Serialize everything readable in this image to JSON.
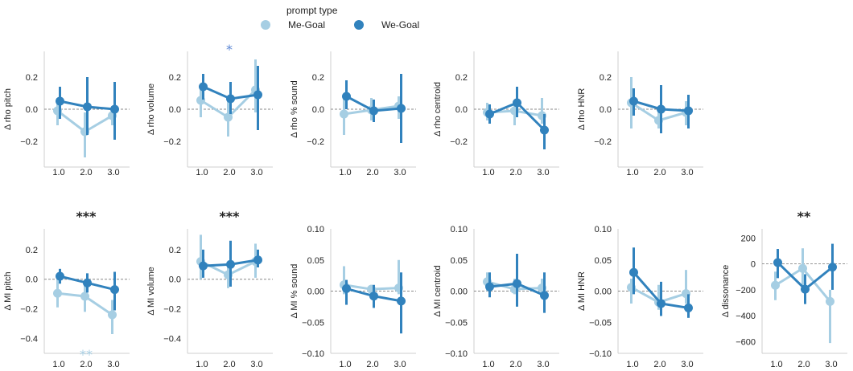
{
  "legend": {
    "title": "prompt type",
    "entries": [
      {
        "label": "Me-Goal",
        "color": "#a6cee3"
      },
      {
        "label": "We-Goal",
        "color": "#3182bd"
      }
    ]
  },
  "colors": {
    "me": "#a6cee3",
    "we": "#3182bd",
    "star_blue": "#5b87d4"
  },
  "chart_data": [
    {
      "type": "line",
      "ylabel": "Δ rho pitch",
      "categories": [
        "1.0",
        "2.0",
        "3.0"
      ],
      "yticks": [
        "0.2",
        "0.0",
        "−0.2"
      ],
      "ytick_values": [
        0.2,
        0.0,
        -0.2
      ],
      "ylim": [
        -0.36,
        0.36
      ],
      "series": [
        {
          "name": "Me-Goal",
          "values": [
            -0.01,
            -0.14,
            -0.04
          ],
          "ci_low": [
            -0.1,
            -0.3,
            -0.1
          ],
          "ci_high": [
            0.07,
            -0.02,
            0.02
          ]
        },
        {
          "name": "We-Goal",
          "values": [
            0.05,
            0.015,
            0.0
          ],
          "ci_low": [
            -0.06,
            -0.16,
            -0.19
          ],
          "ci_high": [
            0.14,
            0.2,
            0.17
          ]
        }
      ],
      "annotations": []
    },
    {
      "type": "line",
      "ylabel": "Δ rho volume",
      "categories": [
        "1.0",
        "2.0",
        "3.0"
      ],
      "yticks": [
        "0.2",
        "0.0",
        "−0.2"
      ],
      "ytick_values": [
        0.2,
        0.0,
        -0.2
      ],
      "ylim": [
        -0.36,
        0.36
      ],
      "series": [
        {
          "name": "Me-Goal",
          "values": [
            0.055,
            -0.05,
            0.12
          ],
          "ci_low": [
            -0.05,
            -0.17,
            -0.02
          ],
          "ci_high": [
            0.15,
            0.05,
            0.31
          ]
        },
        {
          "name": "We-Goal",
          "values": [
            0.14,
            0.065,
            0.09
          ],
          "ci_low": [
            0.06,
            -0.03,
            -0.13
          ],
          "ci_high": [
            0.22,
            0.17,
            0.27
          ]
        }
      ],
      "annotations": [
        {
          "text": "*",
          "x": "2.0",
          "color": "#5b87d4"
        }
      ]
    },
    {
      "type": "line",
      "ylabel": "Δ rho % sound",
      "categories": [
        "1.0",
        "2.0",
        "3.0"
      ],
      "yticks": [
        "0.2",
        "0.0",
        "−0.2"
      ],
      "ytick_values": [
        0.2,
        0.0,
        -0.2
      ],
      "ylim": [
        -0.36,
        0.36
      ],
      "series": [
        {
          "name": "Me-Goal",
          "values": [
            -0.03,
            -0.005,
            0.02
          ],
          "ci_low": [
            -0.16,
            -0.07,
            -0.06
          ],
          "ci_high": [
            0.07,
            0.07,
            0.08
          ]
        },
        {
          "name": "We-Goal",
          "values": [
            0.08,
            -0.01,
            0.005
          ],
          "ci_low": [
            0.0,
            -0.08,
            -0.21
          ],
          "ci_high": [
            0.18,
            0.06,
            0.22
          ]
        }
      ],
      "annotations": []
    },
    {
      "type": "line",
      "ylabel": "Δ rho centroid",
      "categories": [
        "1.0",
        "2.0",
        "3.0"
      ],
      "yticks": [
        "0.2",
        "0.0",
        "−0.2"
      ],
      "ytick_values": [
        0.2,
        0.0,
        -0.2
      ],
      "ylim": [
        -0.36,
        0.36
      ],
      "series": [
        {
          "name": "Me-Goal",
          "values": [
            -0.02,
            -0.01,
            -0.04
          ],
          "ci_low": [
            -0.07,
            -0.1,
            -0.09
          ],
          "ci_high": [
            0.04,
            0.05,
            0.07
          ]
        },
        {
          "name": "We-Goal",
          "values": [
            -0.03,
            0.04,
            -0.13
          ],
          "ci_low": [
            -0.09,
            -0.05,
            -0.25
          ],
          "ci_high": [
            0.03,
            0.14,
            -0.03
          ]
        }
      ],
      "annotations": []
    },
    {
      "type": "line",
      "ylabel": "Δ rho HNR",
      "categories": [
        "1.0",
        "2.0",
        "3.0"
      ],
      "yticks": [
        "0.2",
        "0.0",
        "−0.2"
      ],
      "ytick_values": [
        0.2,
        0.0,
        -0.2
      ],
      "ylim": [
        -0.36,
        0.36
      ],
      "series": [
        {
          "name": "Me-Goal",
          "values": [
            0.04,
            -0.07,
            -0.02
          ],
          "ci_low": [
            -0.12,
            -0.12,
            -0.1
          ],
          "ci_high": [
            0.2,
            0.0,
            0.05
          ]
        },
        {
          "name": "We-Goal",
          "values": [
            0.05,
            0.0,
            -0.01
          ],
          "ci_low": [
            -0.04,
            -0.15,
            -0.12
          ],
          "ci_high": [
            0.13,
            0.15,
            0.09
          ]
        }
      ],
      "annotations": []
    },
    {
      "type": "line",
      "ylabel": "Δ MI pitch",
      "categories": [
        "1.0",
        "2.0",
        "3.0"
      ],
      "yticks": [
        "0.2",
        "0.0",
        "−0.2",
        "−0.4"
      ],
      "ytick_values": [
        0.2,
        0.0,
        -0.2,
        -0.4
      ],
      "ylim": [
        -0.5,
        0.34
      ],
      "series": [
        {
          "name": "Me-Goal",
          "values": [
            -0.095,
            -0.115,
            -0.24
          ],
          "ci_low": [
            -0.19,
            -0.22,
            -0.37
          ],
          "ci_high": [
            0.0,
            -0.01,
            -0.14
          ]
        },
        {
          "name": "We-Goal",
          "values": [
            0.02,
            -0.025,
            -0.07
          ],
          "ci_low": [
            -0.03,
            -0.09,
            -0.21
          ],
          "ci_high": [
            0.07,
            0.04,
            0.05
          ]
        }
      ],
      "annotations": [
        {
          "text": "***",
          "x": "2.0",
          "color": "#222222"
        },
        {
          "text": "**",
          "x": "2.0",
          "color": "#a6cee3"
        }
      ]
    },
    {
      "type": "line",
      "ylabel": "Δ MI volume",
      "categories": [
        "1.0",
        "2.0",
        "3.0"
      ],
      "yticks": [
        "0.2",
        "0.0",
        "−0.2",
        "−0.4"
      ],
      "ytick_values": [
        0.2,
        0.0,
        -0.2,
        -0.4
      ],
      "ylim": [
        -0.5,
        0.34
      ],
      "series": [
        {
          "name": "Me-Goal",
          "values": [
            0.12,
            0.03,
            0.12
          ],
          "ci_low": [
            0.0,
            -0.06,
            0.01
          ],
          "ci_high": [
            0.3,
            0.12,
            0.24
          ]
        },
        {
          "name": "We-Goal",
          "values": [
            0.09,
            0.1,
            0.13
          ],
          "ci_low": [
            0.01,
            -0.05,
            0.08
          ],
          "ci_high": [
            0.2,
            0.26,
            0.2
          ]
        }
      ],
      "annotations": [
        {
          "text": "***",
          "x": "2.0",
          "color": "#222222"
        }
      ]
    },
    {
      "type": "line",
      "ylabel": "Δ MI % sound",
      "categories": [
        "1.0",
        "2.0",
        "3.0"
      ],
      "yticks": [
        "0.10",
        "0.05",
        "0.00",
        "−0.05",
        "−0.10"
      ],
      "ytick_values": [
        0.1,
        0.05,
        0.0,
        -0.05,
        -0.1
      ],
      "ylim": [
        -0.1,
        0.1
      ],
      "series": [
        {
          "name": "Me-Goal",
          "values": [
            0.01,
            0.003,
            0.005
          ],
          "ci_low": [
            -0.005,
            -0.005,
            -0.005
          ],
          "ci_high": [
            0.04,
            0.01,
            0.05
          ]
        },
        {
          "name": "We-Goal",
          "values": [
            0.004,
            -0.008,
            -0.016
          ],
          "ci_low": [
            -0.022,
            -0.027,
            -0.068
          ],
          "ci_high": [
            0.018,
            0.01,
            0.03
          ]
        }
      ],
      "annotations": []
    },
    {
      "type": "line",
      "ylabel": "Δ MI centroid",
      "categories": [
        "1.0",
        "2.0",
        "3.0"
      ],
      "yticks": [
        "0.10",
        "0.05",
        "0.00",
        "−0.05",
        "−0.10"
      ],
      "ytick_values": [
        0.1,
        0.05,
        0.0,
        -0.05,
        -0.1
      ],
      "ylim": [
        -0.1,
        0.1
      ],
      "series": [
        {
          "name": "Me-Goal",
          "values": [
            0.015,
            0.003,
            0.005
          ],
          "ci_low": [
            0.0,
            -0.005,
            -0.005
          ],
          "ci_high": [
            0.03,
            0.02,
            0.02
          ]
        },
        {
          "name": "We-Goal",
          "values": [
            0.007,
            0.012,
            -0.007
          ],
          "ci_low": [
            -0.01,
            -0.025,
            -0.035
          ],
          "ci_high": [
            0.03,
            0.06,
            0.03
          ]
        }
      ],
      "annotations": []
    },
    {
      "type": "line",
      "ylabel": "Δ MI HNR",
      "categories": [
        "1.0",
        "2.0",
        "3.0"
      ],
      "yticks": [
        "0.10",
        "0.05",
        "0.00",
        "−0.05",
        "−0.10"
      ],
      "ytick_values": [
        0.1,
        0.05,
        0.0,
        -0.05,
        -0.1
      ],
      "ylim": [
        -0.1,
        0.1
      ],
      "series": [
        {
          "name": "Me-Goal",
          "values": [
            0.006,
            -0.018,
            -0.004
          ],
          "ci_low": [
            -0.02,
            -0.03,
            -0.02
          ],
          "ci_high": [
            0.02,
            0.01,
            0.034
          ]
        },
        {
          "name": "We-Goal",
          "values": [
            0.03,
            -0.02,
            -0.027
          ],
          "ci_low": [
            -0.005,
            -0.04,
            -0.043
          ],
          "ci_high": [
            0.07,
            0.015,
            -0.005
          ]
        }
      ],
      "annotations": []
    },
    {
      "type": "line",
      "ylabel": "Δ dissonance",
      "categories": [
        "1.0",
        "2.0",
        "3.0"
      ],
      "yticks": [
        "200",
        "0",
        "−200",
        "−400",
        "−600"
      ],
      "ytick_values": [
        200,
        0,
        -200,
        -400,
        -600
      ],
      "ylim": [
        -690,
        270
      ],
      "series": [
        {
          "name": "Me-Goal",
          "values": [
            -165,
            -35,
            -290
          ],
          "ci_low": [
            -280,
            -200,
            -610
          ],
          "ci_high": [
            -60,
            120,
            -200
          ]
        },
        {
          "name": "We-Goal",
          "values": [
            10,
            -195,
            -25
          ],
          "ci_low": [
            -110,
            -310,
            -200
          ],
          "ci_high": [
            115,
            -80,
            155
          ]
        }
      ],
      "annotations": [
        {
          "text": "**",
          "x": "2.0",
          "color": "#222222"
        }
      ]
    }
  ]
}
